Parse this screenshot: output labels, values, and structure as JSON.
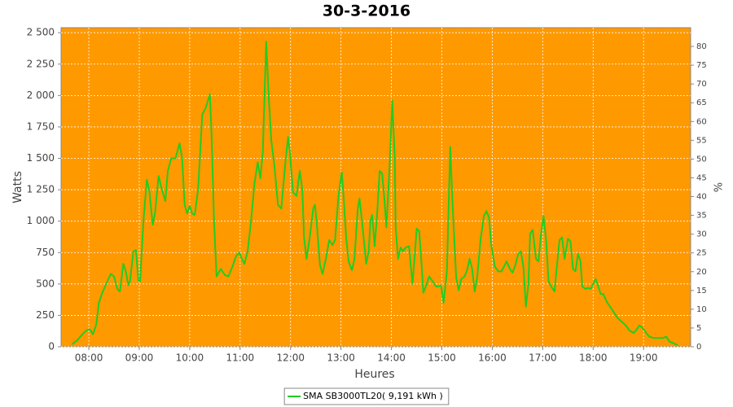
{
  "chart_data": {
    "type": "line",
    "title": "30-3-2016",
    "x_label": "Heures",
    "y_label": "Watts",
    "y2_label": "%",
    "background": "#ff9900",
    "grid": true,
    "legend": "bottom",
    "xlim": [
      "07:27",
      "19:56"
    ],
    "xticks": [
      "08:00",
      "09:00",
      "10:00",
      "11:00",
      "12:00",
      "13:00",
      "14:00",
      "15:00",
      "16:00",
      "17:00",
      "18:00",
      "19:00"
    ],
    "ylim": [
      0,
      2540
    ],
    "yticks": [
      0,
      250,
      500,
      750,
      {
        "value": 1000,
        "label": "1 000"
      },
      {
        "value": 1250,
        "label": "1 250"
      },
      {
        "value": 1500,
        "label": "1 500"
      },
      {
        "value": 1750,
        "label": "1 750"
      },
      {
        "value": 2000,
        "label": "2 000"
      },
      {
        "value": 2250,
        "label": "2 250"
      },
      {
        "value": 2500,
        "label": "2 500"
      }
    ],
    "y2lim": [
      0,
      85
    ],
    "y2ticks": [
      0,
      5,
      10,
      15,
      20,
      25,
      30,
      35,
      40,
      45,
      50,
      55,
      60,
      65,
      70,
      75,
      80
    ],
    "x": [
      "07:40",
      "07:46",
      "07:51",
      "07:57",
      "08:01",
      "08:05",
      "08:09",
      "08:12",
      "08:16",
      "08:20",
      "08:26",
      "08:30",
      "08:34",
      "08:37",
      "08:41",
      "08:44",
      "08:47",
      "08:49",
      "08:53",
      "08:56",
      "08:59",
      "09:01",
      "09:05",
      "09:09",
      "09:12",
      "09:16",
      "09:19",
      "09:23",
      "09:27",
      "09:31",
      "09:34",
      "09:38",
      "09:43",
      "09:48",
      "09:51",
      "09:54",
      "09:57",
      "10:00",
      "10:03",
      "10:06",
      "10:10",
      "10:15",
      "10:19",
      "10:24",
      "10:26",
      "10:29",
      "10:32",
      "10:37",
      "10:42",
      "10:46",
      "10:51",
      "10:55",
      "10:59",
      "11:02",
      "11:05",
      "11:09",
      "11:13",
      "11:17",
      "11:21",
      "11:24",
      "11:27",
      "11:31",
      "11:34",
      "11:37",
      "11:41",
      "11:45",
      "11:49",
      "11:54",
      "11:57",
      "11:59",
      "12:03",
      "12:07",
      "12:11",
      "12:14",
      "12:16",
      "12:19",
      "12:23",
      "12:27",
      "12:29",
      "12:31",
      "12:35",
      "12:38",
      "12:42",
      "12:46",
      "12:50",
      "12:53",
      "12:57",
      "13:01",
      "13:03",
      "13:06",
      "13:09",
      "13:13",
      "13:16",
      "13:20",
      "13:22",
      "13:25",
      "13:30",
      "13:33",
      "13:35",
      "13:37",
      "13:40",
      "13:43",
      "13:46",
      "13:49",
      "13:52",
      "13:54",
      "13:58",
      "14:01",
      "14:04",
      "14:05",
      "14:08",
      "14:11",
      "14:14",
      "14:17",
      "14:21",
      "14:25",
      "14:28",
      "14:30",
      "14:33",
      "14:36",
      "14:38",
      "14:41",
      "14:45",
      "14:49",
      "14:53",
      "14:56",
      "14:59",
      "15:02",
      "15:06",
      "15:10",
      "15:13",
      "15:17",
      "15:20",
      "15:23",
      "15:27",
      "15:30",
      "15:33",
      "15:36",
      "15:39",
      "15:42",
      "15:46",
      "15:50",
      "15:53",
      "15:56",
      "15:59",
      "16:03",
      "16:07",
      "16:11",
      "16:14",
      "16:17",
      "16:21",
      "16:24",
      "16:27",
      "16:31",
      "16:34",
      "16:37",
      "16:40",
      "16:43",
      "16:45",
      "16:48",
      "16:52",
      "16:55",
      "16:58",
      "17:01",
      "17:04",
      "17:07",
      "17:11",
      "17:14",
      "17:17",
      "17:20",
      "17:23",
      "17:26",
      "17:30",
      "17:33",
      "17:36",
      "17:39",
      "17:42",
      "17:45",
      "17:47",
      "17:51",
      "17:54",
      "17:57",
      "18:00",
      "18:03",
      "18:06",
      "18:09",
      "18:12",
      "18:16",
      "18:19",
      "18:24",
      "18:29",
      "18:34",
      "18:39",
      "18:43",
      "18:48",
      "18:51",
      "18:55",
      "18:59",
      "19:03",
      "19:07",
      "19:12",
      "19:18",
      "19:23",
      "19:27",
      "19:31",
      "19:35",
      "19:38",
      "19:41"
    ],
    "series": [
      {
        "name": "SMA SB3000TL20( 9,191 kWh )",
        "color": "#22cc22",
        "values": [
          20,
          50,
          90,
          130,
          140,
          100,
          180,
          350,
          430,
          490,
          580,
          560,
          460,
          440,
          660,
          600,
          490,
          520,
          760,
          770,
          530,
          520,
          1000,
          1330,
          1240,
          970,
          1080,
          1360,
          1250,
          1160,
          1400,
          1500,
          1500,
          1620,
          1500,
          1130,
          1060,
          1120,
          1060,
          1050,
          1250,
          1850,
          1900,
          2010,
          1700,
          1000,
          560,
          620,
          570,
          560,
          640,
          720,
          750,
          700,
          660,
          760,
          1000,
          1300,
          1470,
          1340,
          1550,
          2430,
          2000,
          1650,
          1430,
          1130,
          1100,
          1480,
          1670,
          1560,
          1230,
          1200,
          1400,
          1250,
          870,
          700,
          880,
          1100,
          1130,
          1000,
          650,
          580,
          700,
          850,
          810,
          850,
          1200,
          1390,
          1200,
          880,
          680,
          610,
          700,
          1100,
          1180,
          1000,
          660,
          760,
          1000,
          1050,
          800,
          1050,
          1400,
          1380,
          1150,
          950,
          1450,
          1960,
          1500,
          950,
          700,
          790,
          760,
          790,
          800,
          500,
          750,
          940,
          920,
          650,
          430,
          480,
          560,
          520,
          480,
          480,
          490,
          350,
          600,
          1590,
          1100,
          550,
          450,
          540,
          560,
          610,
          700,
          620,
          440,
          550,
          850,
          1040,
          1080,
          1030,
          800,
          640,
          600,
          600,
          640,
          680,
          620,
          590,
          640,
          740,
          760,
          640,
          320,
          500,
          900,
          930,
          700,
          680,
          900,
          1040,
          850,
          520,
          470,
          440,
          650,
          850,
          870,
          700,
          860,
          840,
          620,
          600,
          740,
          680,
          480,
          460,
          470,
          460,
          500,
          540,
          480,
          420,
          420,
          360,
          330,
          280,
          230,
          200,
          170,
          130,
          110,
          130,
          170,
          150,
          110,
          80,
          70,
          70,
          70,
          80,
          40,
          30,
          20,
          10
        ]
      }
    ]
  }
}
